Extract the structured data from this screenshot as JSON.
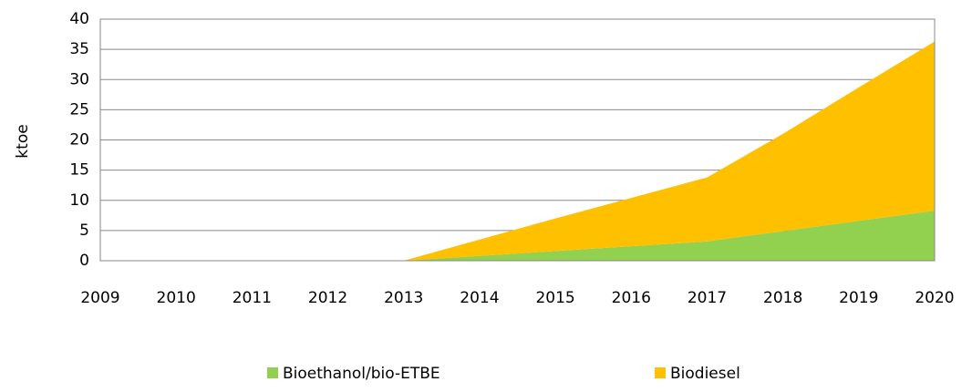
{
  "chart_data": {
    "type": "stacked_area",
    "y_label": "ktoe",
    "categories": [
      "2009",
      "2010",
      "2011",
      "2012",
      "2013",
      "2014",
      "2015",
      "2016",
      "2017",
      "2018",
      "2019",
      "2020"
    ],
    "series": [
      {
        "name": "Bioethanol/bio-ETBE",
        "color": "#92d050",
        "values": [
          0,
          0,
          0,
          0,
          0,
          0.8,
          1.6,
          2.4,
          3.2,
          4.9,
          6.6,
          8.3
        ]
      },
      {
        "name": "Biodiesel",
        "color": "#ffc000",
        "values": [
          0,
          0,
          0,
          0,
          0,
          2.7,
          5.4,
          8,
          10.6,
          16.1,
          22.1,
          28
        ]
      }
    ],
    "ylim": [
      0,
      40
    ],
    "yticks": [
      0,
      5,
      10,
      15,
      20,
      25,
      30,
      35,
      40
    ],
    "grid": true,
    "legend": "bottom"
  }
}
